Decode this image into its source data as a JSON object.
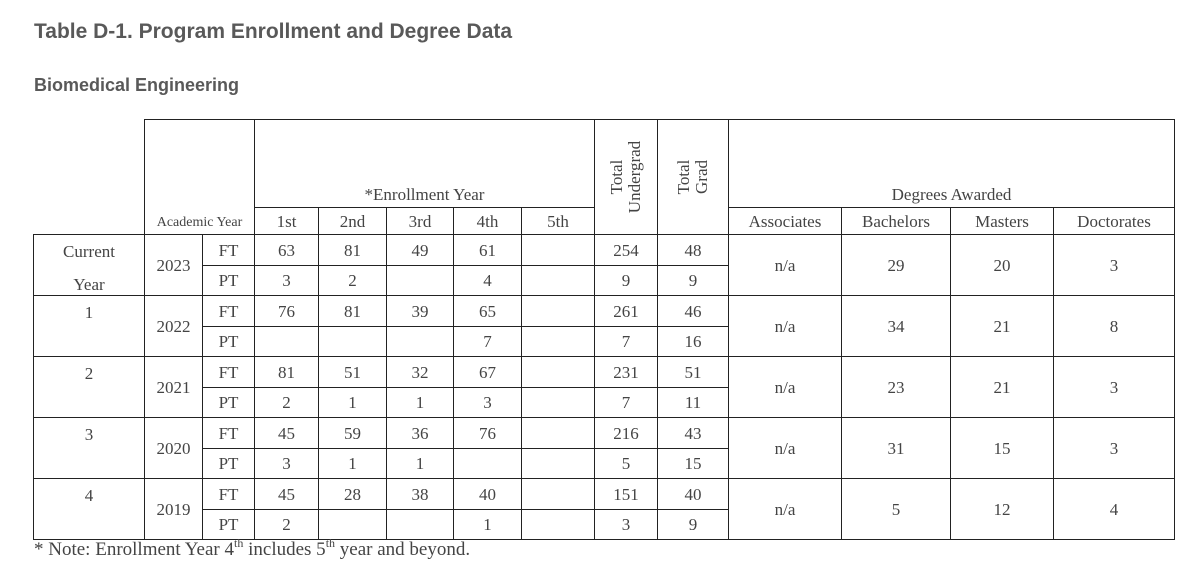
{
  "title": "Table D-1.  Program Enrollment and Degree Data",
  "subtitle": "Biomedical Engineering",
  "headers": {
    "academic_year": "Academic Year",
    "enrollment_year": "*Enrollment Year",
    "enrollment_cols": [
      "1st",
      "2nd",
      "3rd",
      "4th",
      "5th"
    ],
    "total_undergrad": "Total Undergrad",
    "total_grad": "Total Grad",
    "degrees_awarded": "Degrees Awarded",
    "degree_cols": [
      "Associates",
      "Bachelors",
      "Masters",
      "Doctorates"
    ]
  },
  "rows": [
    {
      "label_top": "Current",
      "label_bottom": "Year",
      "year": "2023",
      "ft": {
        "type": "FT",
        "y1": "63",
        "y2": "81",
        "y3": "49",
        "y4": "61",
        "y5": "",
        "undergrad": "254",
        "grad": "48"
      },
      "pt": {
        "type": "PT",
        "y1": "3",
        "y2": "2",
        "y3": "",
        "y4": "4",
        "y5": "",
        "undergrad": "9",
        "grad": "9"
      },
      "degrees": {
        "associates": "n/a",
        "bachelors": "29",
        "masters": "20",
        "doctorates": "3"
      }
    },
    {
      "label_top": "1",
      "label_bottom": "",
      "year": "2022",
      "ft": {
        "type": "FT",
        "y1": "76",
        "y2": "81",
        "y3": "39",
        "y4": "65",
        "y5": "",
        "undergrad": "261",
        "grad": "46"
      },
      "pt": {
        "type": "PT",
        "y1": "",
        "y2": "",
        "y3": "",
        "y4": "7",
        "y5": "",
        "undergrad": "7",
        "grad": "16"
      },
      "degrees": {
        "associates": "n/a",
        "bachelors": "34",
        "masters": "21",
        "doctorates": "8"
      }
    },
    {
      "label_top": "2",
      "label_bottom": "",
      "year": "2021",
      "ft": {
        "type": "FT",
        "y1": "81",
        "y2": "51",
        "y3": "32",
        "y4": "67",
        "y5": "",
        "undergrad": "231",
        "grad": "51"
      },
      "pt": {
        "type": "PT",
        "y1": "2",
        "y2": "1",
        "y3": "1",
        "y4": "3",
        "y5": "",
        "undergrad": "7",
        "grad": "11"
      },
      "degrees": {
        "associates": "n/a",
        "bachelors": "23",
        "masters": "21",
        "doctorates": "3"
      }
    },
    {
      "label_top": "3",
      "label_bottom": "",
      "year": "2020",
      "ft": {
        "type": "FT",
        "y1": "45",
        "y2": "59",
        "y3": "36",
        "y4": "76",
        "y5": "",
        "undergrad": "216",
        "grad": "43"
      },
      "pt": {
        "type": "PT",
        "y1": "3",
        "y2": "1",
        "y3": "1",
        "y4": "",
        "y5": "",
        "undergrad": "5",
        "grad": "15"
      },
      "degrees": {
        "associates": "n/a",
        "bachelors": "31",
        "masters": "15",
        "doctorates": "3"
      }
    },
    {
      "label_top": "4",
      "label_bottom": "",
      "year": "2019",
      "ft": {
        "type": "FT",
        "y1": "45",
        "y2": "28",
        "y3": "38",
        "y4": "40",
        "y5": "",
        "undergrad": "151",
        "grad": "40"
      },
      "pt": {
        "type": "PT",
        "y1": "2",
        "y2": "",
        "y3": "",
        "y4": "1",
        "y5": "",
        "undergrad": "3",
        "grad": "9"
      },
      "degrees": {
        "associates": "n/a",
        "bachelors": "5",
        "masters": "12",
        "doctorates": "4"
      }
    }
  ],
  "footnote": {
    "prefix": "* Note: Enrollment Year 4",
    "sup1": "th",
    "middle": " includes 5",
    "sup2": "th",
    "suffix": " year and beyond."
  }
}
